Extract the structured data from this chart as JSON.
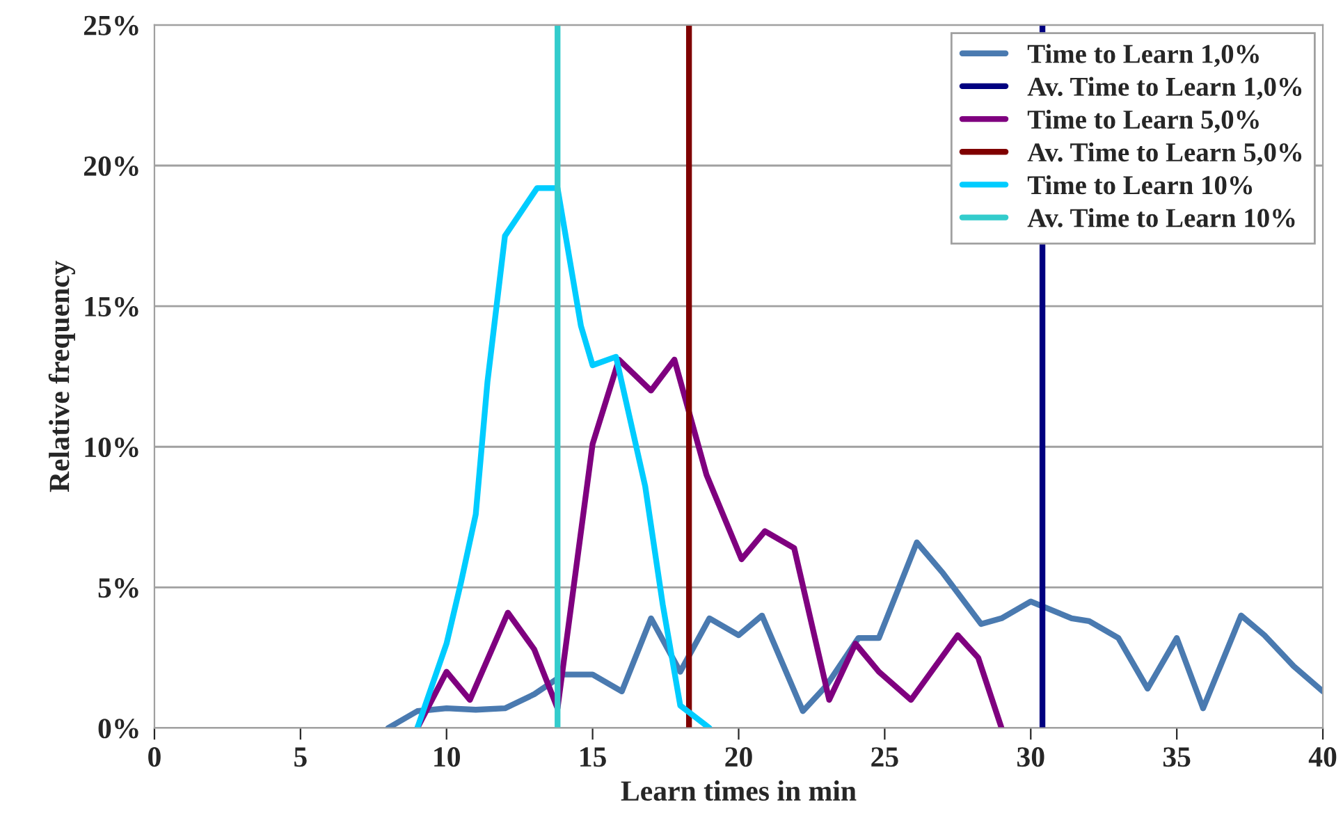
{
  "chart_data": {
    "type": "line",
    "xlabel": "Learn times in min",
    "ylabel": "Relative frequency",
    "xlim": [
      0,
      40
    ],
    "xticks": [
      0,
      5,
      10,
      15,
      20,
      25,
      30,
      35,
      40
    ],
    "ylim": [
      0,
      25
    ],
    "yticks": [
      {
        "value": 0,
        "label": "0%"
      },
      {
        "value": 5,
        "label": "5%"
      },
      {
        "value": 10,
        "label": "10%"
      },
      {
        "value": 15,
        "label": "15%"
      },
      {
        "value": 20,
        "label": "20%"
      },
      {
        "value": 25,
        "label": "25%"
      }
    ],
    "grid": "y",
    "legend": "top right",
    "series": [
      {
        "name": "Time to Learn 1,0%",
        "color": "#4a7ab0",
        "x": [
          8,
          9,
          10,
          11,
          12,
          13,
          14,
          15,
          16,
          17,
          18,
          19,
          20,
          20.8,
          22.2,
          23,
          24.1,
          24.8,
          26.1,
          27,
          28.3,
          29,
          30,
          31.4,
          32,
          33,
          34,
          35,
          35.9,
          37.2,
          38,
          39,
          40
        ],
        "values": [
          0,
          0.6,
          0.7,
          0.65,
          0.7,
          1.2,
          1.9,
          1.9,
          1.3,
          3.9,
          2.0,
          3.9,
          3.3,
          4.0,
          0.6,
          1.5,
          3.2,
          3.2,
          6.6,
          5.5,
          3.7,
          3.9,
          4.5,
          3.9,
          3.8,
          3.2,
          1.4,
          3.2,
          0.7,
          4.0,
          3.3,
          2.2,
          1.3
        ]
      },
      {
        "name": "Av. Time to Learn 1,0%",
        "color": "#000080",
        "x": [
          30.4,
          30.4
        ],
        "values": [
          0,
          25
        ]
      },
      {
        "name": "Time to Learn 5,0%",
        "color": "#7f007f",
        "x": [
          9,
          10,
          10.8,
          12.1,
          13,
          13.8,
          15,
          15.9,
          17,
          17.8,
          18.9,
          20.1,
          20.9,
          21.9,
          23.1,
          24,
          24.8,
          25.9,
          27.5,
          28.2,
          29
        ],
        "values": [
          0,
          2.0,
          1.0,
          4.1,
          2.8,
          0.7,
          10.1,
          13.1,
          12.0,
          13.1,
          9.0,
          6.0,
          7.0,
          6.4,
          1.0,
          3.0,
          2.0,
          1.0,
          3.3,
          2.5,
          0
        ]
      },
      {
        "name": "Av. Time to Learn 5,0%",
        "color": "#7f0000",
        "x": [
          18.3,
          18.3
        ],
        "values": [
          0,
          25
        ]
      },
      {
        "name": "Time to Learn 10%",
        "color": "#00ccff",
        "x": [
          9,
          10,
          10.5,
          11,
          11.4,
          12,
          13.1,
          13.8,
          14.6,
          15,
          15.8,
          16.8,
          17.4,
          18,
          19
        ],
        "values": [
          0,
          3.0,
          5.2,
          7.6,
          12.3,
          17.5,
          19.2,
          19.2,
          14.3,
          12.9,
          13.2,
          8.6,
          4.4,
          0.8,
          0
        ]
      },
      {
        "name": "Av. Time to Learn 10%",
        "color": "#33cccc",
        "x": [
          13.8,
          13.8
        ],
        "values": [
          0,
          25
        ]
      }
    ]
  }
}
